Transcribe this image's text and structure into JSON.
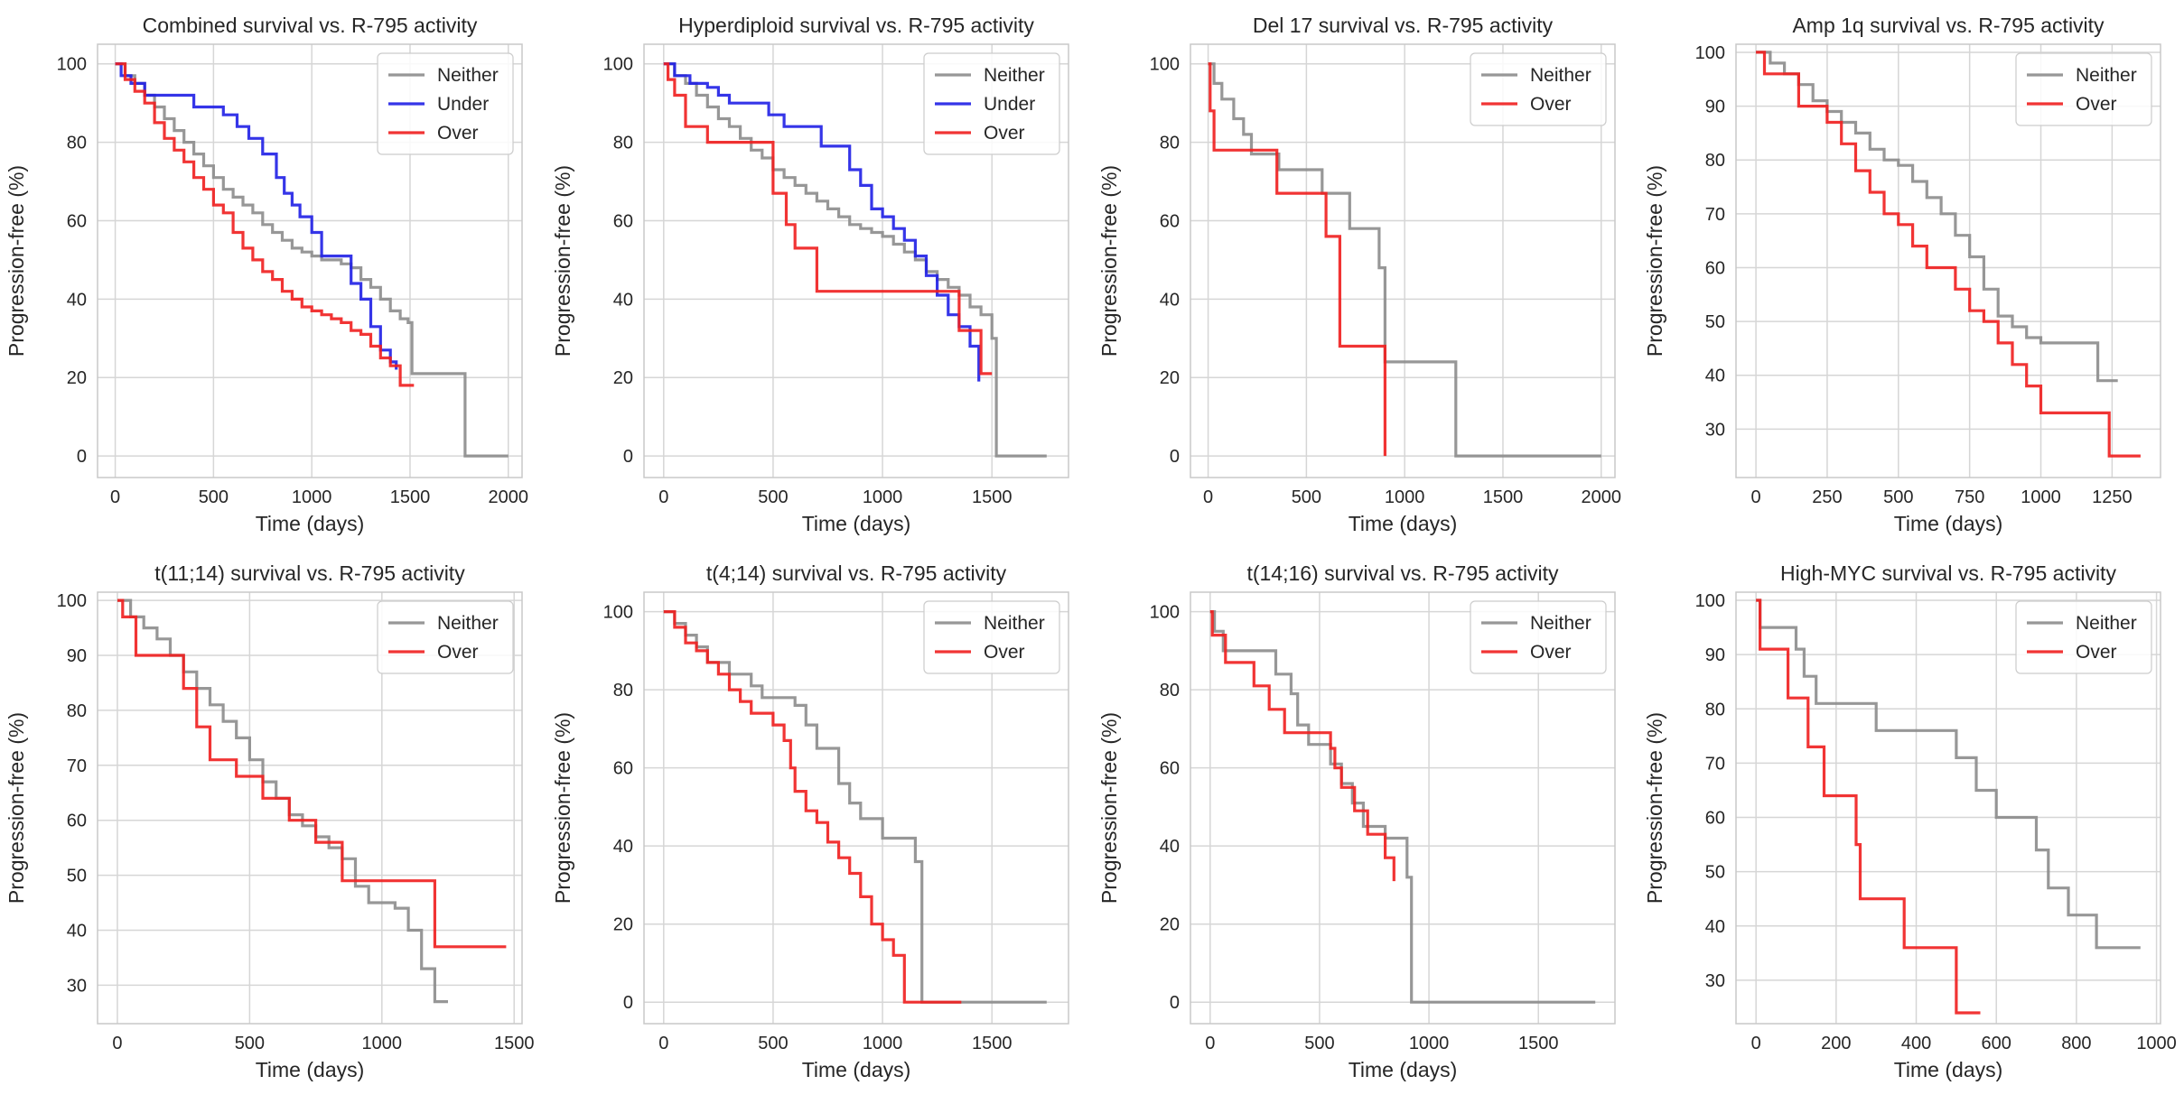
{
  "colors": {
    "Neither": "#8c8c8c",
    "Under": "#1f1fe6",
    "Over": "#f01e1e"
  },
  "chart_data": [
    {
      "type": "line",
      "title": "Combined survival vs. R-795 activity",
      "xlabel": "Time (days)",
      "ylabel": "Progression-free (%)",
      "xlim": [
        -90,
        2070
      ],
      "ylim": [
        -5.5,
        105
      ],
      "xticks": [
        0,
        500,
        1000,
        1500,
        2000
      ],
      "yticks": [
        0,
        20,
        40,
        60,
        80,
        100
      ],
      "grid": true,
      "legend": "top-right",
      "series": [
        {
          "name": "Neither",
          "x": [
            0,
            50,
            100,
            150,
            200,
            250,
            300,
            350,
            400,
            450,
            500,
            550,
            600,
            650,
            700,
            750,
            800,
            850,
            900,
            950,
            1000,
            1050,
            1100,
            1150,
            1200,
            1250,
            1300,
            1350,
            1400,
            1450,
            1490,
            1510,
            1760,
            1780,
            2000
          ],
          "y": [
            100,
            97,
            95,
            92,
            89,
            86,
            83,
            80,
            77,
            74,
            71,
            68,
            66,
            64,
            62,
            59,
            57,
            55,
            53,
            52,
            51,
            50,
            50,
            49,
            48,
            45,
            43,
            40,
            37,
            35,
            34,
            21,
            21,
            0,
            0
          ]
        },
        {
          "name": "Under",
          "x": [
            0,
            30,
            80,
            150,
            250,
            400,
            500,
            550,
            620,
            680,
            750,
            820,
            860,
            900,
            940,
            1000,
            1050,
            1100,
            1150,
            1200,
            1250,
            1300,
            1350,
            1400,
            1430
          ],
          "y": [
            100,
            97,
            95,
            92,
            92,
            89,
            89,
            87,
            84,
            81,
            77,
            71,
            67,
            64,
            61,
            57,
            51,
            51,
            51,
            44,
            40,
            33,
            27,
            24,
            22
          ]
        },
        {
          "name": "Over",
          "x": [
            0,
            50,
            100,
            150,
            200,
            250,
            300,
            350,
            400,
            450,
            500,
            550,
            600,
            650,
            700,
            750,
            800,
            850,
            900,
            950,
            1000,
            1050,
            1100,
            1150,
            1200,
            1250,
            1300,
            1350,
            1400,
            1450,
            1520
          ],
          "y": [
            100,
            96,
            93,
            90,
            85,
            81,
            78,
            75,
            71,
            68,
            64,
            62,
            57,
            53,
            50,
            47,
            45,
            42,
            40,
            38,
            37,
            36,
            35,
            34,
            32,
            31,
            28,
            25,
            23,
            18,
            18
          ]
        }
      ]
    },
    {
      "type": "line",
      "title": "Hyperdiploid survival vs. R-795 activity",
      "xlabel": "Time (days)",
      "ylabel": "Progression-free (%)",
      "xlim": [
        -90,
        1850
      ],
      "ylim": [
        -5.5,
        105
      ],
      "xticks": [
        0,
        500,
        1000,
        1500
      ],
      "yticks": [
        0,
        20,
        40,
        60,
        80,
        100
      ],
      "grid": true,
      "legend": "top-right",
      "series": [
        {
          "name": "Neither",
          "x": [
            0,
            50,
            100,
            150,
            200,
            250,
            300,
            350,
            400,
            450,
            500,
            550,
            600,
            650,
            700,
            750,
            800,
            850,
            900,
            950,
            1000,
            1050,
            1100,
            1150,
            1200,
            1250,
            1300,
            1350,
            1400,
            1450,
            1500,
            1520,
            1750
          ],
          "y": [
            100,
            97,
            95,
            92,
            89,
            86,
            84,
            81,
            78,
            76,
            73,
            71,
            69,
            67,
            65,
            63,
            61,
            59,
            58,
            57,
            56,
            54,
            52,
            50,
            47,
            45,
            43,
            41,
            38,
            36,
            30,
            0,
            0
          ]
        },
        {
          "name": "Under",
          "x": [
            0,
            50,
            120,
            200,
            250,
            300,
            400,
            480,
            550,
            650,
            720,
            800,
            850,
            900,
            950,
            1000,
            1050,
            1100,
            1150,
            1200,
            1250,
            1300,
            1350,
            1400,
            1440
          ],
          "y": [
            100,
            97,
            95,
            94,
            92,
            90,
            90,
            87,
            84,
            84,
            79,
            79,
            73,
            69,
            63,
            61,
            58,
            55,
            51,
            46,
            41,
            36,
            33,
            28,
            19
          ]
        },
        {
          "name": "Over",
          "x": [
            0,
            20,
            50,
            100,
            200,
            400,
            500,
            560,
            600,
            650,
            700,
            800,
            900,
            1000,
            1100,
            1200,
            1350,
            1450,
            1500
          ],
          "y": [
            100,
            96,
            92,
            84,
            80,
            80,
            67,
            59,
            53,
            53,
            42,
            42,
            42,
            42,
            42,
            42,
            32,
            21,
            21
          ]
        }
      ]
    },
    {
      "type": "line",
      "title": "Del 17 survival vs. R-795 activity",
      "xlabel": "Time (days)",
      "ylabel": "Progression-free (%)",
      "xlim": [
        -90,
        2070
      ],
      "ylim": [
        -5.5,
        105
      ],
      "xticks": [
        0,
        500,
        1000,
        1500,
        2000
      ],
      "yticks": [
        0,
        20,
        40,
        60,
        80,
        100
      ],
      "grid": true,
      "legend": "top-right",
      "series": [
        {
          "name": "Neither",
          "x": [
            0,
            30,
            70,
            130,
            180,
            220,
            360,
            580,
            720,
            870,
            900,
            1000,
            1100,
            1200,
            1260,
            1500,
            2000
          ],
          "y": [
            100,
            95,
            91,
            86,
            82,
            77,
            73,
            67,
            58,
            48,
            24,
            24,
            24,
            24,
            0,
            0,
            0
          ]
        },
        {
          "name": "Over",
          "x": [
            0,
            10,
            30,
            350,
            600,
            670,
            880,
            900
          ],
          "y": [
            100,
            88,
            78,
            67,
            56,
            28,
            28,
            0
          ]
        }
      ]
    },
    {
      "type": "line",
      "title": "Amp 1q survival vs. R-795 activity",
      "xlabel": "Time (days)",
      "ylabel": "Progression-free (%)",
      "xlim": [
        -70,
        1420
      ],
      "ylim": [
        21,
        101.5
      ],
      "xticks": [
        0,
        250,
        500,
        750,
        1000,
        1250
      ],
      "yticks": [
        30,
        40,
        50,
        60,
        70,
        80,
        90,
        100
      ],
      "grid": true,
      "legend": "top-right",
      "series": [
        {
          "name": "Neither",
          "x": [
            0,
            50,
            100,
            150,
            200,
            250,
            300,
            350,
            400,
            450,
            500,
            550,
            600,
            650,
            700,
            750,
            800,
            850,
            900,
            950,
            1000,
            1050,
            1100,
            1150,
            1200,
            1250,
            1270
          ],
          "y": [
            100,
            98,
            96,
            94,
            91,
            89,
            87,
            85,
            82,
            80,
            79,
            76,
            73,
            70,
            66,
            62,
            56,
            51,
            49,
            47,
            46,
            46,
            46,
            46,
            39,
            39,
            39
          ]
        },
        {
          "name": "Over",
          "x": [
            0,
            30,
            60,
            150,
            250,
            300,
            350,
            400,
            450,
            500,
            550,
            600,
            700,
            750,
            800,
            850,
            900,
            950,
            1000,
            1100,
            1200,
            1240,
            1350
          ],
          "y": [
            100,
            96,
            96,
            90,
            87,
            83,
            78,
            74,
            70,
            68,
            64,
            60,
            56,
            52,
            50,
            46,
            42,
            38,
            33,
            33,
            33,
            25,
            25
          ]
        }
      ]
    },
    {
      "type": "line",
      "title": "t(11;14) survival vs. R-795 activity",
      "xlabel": "Time (days)",
      "ylabel": "Progression-free (%)",
      "xlim": [
        -75,
        1530
      ],
      "ylim": [
        23,
        101.5
      ],
      "xticks": [
        0,
        500,
        1000,
        1500
      ],
      "yticks": [
        30,
        40,
        50,
        60,
        70,
        80,
        90,
        100
      ],
      "grid": true,
      "legend": "top-right",
      "series": [
        {
          "name": "Neither",
          "x": [
            0,
            50,
            100,
            150,
            200,
            250,
            300,
            350,
            400,
            450,
            500,
            550,
            600,
            650,
            700,
            750,
            800,
            850,
            900,
            950,
            1000,
            1050,
            1100,
            1150,
            1200,
            1250
          ],
          "y": [
            100,
            97,
            95,
            93,
            90,
            87,
            84,
            81,
            78,
            75,
            71,
            67,
            64,
            61,
            59,
            57,
            55,
            53,
            48,
            45,
            45,
            44,
            40,
            33,
            27,
            27
          ]
        },
        {
          "name": "Over",
          "x": [
            0,
            20,
            70,
            200,
            250,
            300,
            350,
            450,
            550,
            600,
            650,
            750,
            800,
            850,
            1000,
            1100,
            1200,
            1470
          ],
          "y": [
            100,
            97,
            90,
            90,
            84,
            77,
            71,
            68,
            64,
            64,
            60,
            56,
            56,
            49,
            49,
            49,
            37,
            37
          ]
        }
      ]
    },
    {
      "type": "line",
      "title": "t(4;14) survival vs. R-795 activity",
      "xlabel": "Time (days)",
      "ylabel": "Progression-free (%)",
      "xlim": [
        -90,
        1850
      ],
      "ylim": [
        -5.5,
        105
      ],
      "xticks": [
        0,
        500,
        1000,
        1500
      ],
      "yticks": [
        0,
        20,
        40,
        60,
        80,
        100
      ],
      "grid": true,
      "legend": "top-right",
      "series": [
        {
          "name": "Neither",
          "x": [
            0,
            50,
            100,
            150,
            200,
            300,
            400,
            450,
            550,
            600,
            650,
            700,
            800,
            850,
            900,
            1000,
            1100,
            1150,
            1180,
            1500,
            1750
          ],
          "y": [
            100,
            97,
            94,
            91,
            87,
            84,
            81,
            78,
            78,
            76,
            71,
            65,
            56,
            51,
            47,
            42,
            42,
            36,
            0,
            0,
            0
          ]
        },
        {
          "name": "Over",
          "x": [
            0,
            50,
            100,
            150,
            200,
            250,
            300,
            350,
            400,
            500,
            550,
            580,
            600,
            650,
            700,
            750,
            800,
            850,
            900,
            950,
            1000,
            1050,
            1100,
            1300,
            1360
          ],
          "y": [
            100,
            96,
            92,
            90,
            87,
            84,
            80,
            77,
            74,
            71,
            67,
            60,
            54,
            49,
            46,
            41,
            37,
            33,
            27,
            20,
            16,
            12,
            0,
            0,
            0
          ]
        }
      ]
    },
    {
      "type": "line",
      "title": "t(14;16) survival vs. R-795 activity",
      "xlabel": "Time (days)",
      "ylabel": "Progression-free (%)",
      "xlim": [
        -90,
        1850
      ],
      "ylim": [
        -5.5,
        105
      ],
      "xticks": [
        0,
        500,
        1000,
        1500
      ],
      "yticks": [
        0,
        20,
        40,
        60,
        80,
        100
      ],
      "grid": true,
      "legend": "top-right",
      "series": [
        {
          "name": "Neither",
          "x": [
            0,
            20,
            60,
            100,
            200,
            300,
            350,
            370,
            400,
            450,
            500,
            550,
            600,
            650,
            700,
            800,
            900,
            920,
            1000,
            1500,
            1760
          ],
          "y": [
            100,
            95,
            90,
            90,
            90,
            84,
            84,
            79,
            71,
            66,
            66,
            61,
            56,
            51,
            45,
            42,
            32,
            0,
            0,
            0,
            0
          ]
        },
        {
          "name": "Over",
          "x": [
            0,
            10,
            70,
            200,
            270,
            340,
            450,
            550,
            570,
            600,
            660,
            720,
            800,
            840
          ],
          "y": [
            100,
            94,
            87,
            81,
            75,
            69,
            69,
            65,
            60,
            55,
            49,
            43,
            37,
            31
          ]
        }
      ]
    },
    {
      "type": "line",
      "title": "High-MYC survival vs. R-795 activity",
      "xlabel": "Time (days)",
      "ylabel": "Progression-free (%)",
      "xlim": [
        -50,
        1010
      ],
      "ylim": [
        22,
        101.5
      ],
      "xticks": [
        0,
        200,
        400,
        600,
        800,
        1000
      ],
      "yticks": [
        30,
        40,
        50,
        60,
        70,
        80,
        90,
        100
      ],
      "grid": true,
      "legend": "top-right",
      "series": [
        {
          "name": "Neither",
          "x": [
            0,
            10,
            100,
            120,
            150,
            200,
            300,
            450,
            500,
            550,
            600,
            650,
            700,
            730,
            780,
            850,
            960
          ],
          "y": [
            100,
            95,
            91,
            86,
            81,
            81,
            76,
            76,
            71,
            65,
            60,
            60,
            54,
            47,
            42,
            36,
            36
          ]
        },
        {
          "name": "Over",
          "x": [
            0,
            10,
            80,
            130,
            170,
            250,
            260,
            300,
            370,
            450,
            500,
            560
          ],
          "y": [
            100,
            91,
            82,
            73,
            64,
            55,
            45,
            45,
            36,
            36,
            24,
            24
          ]
        }
      ]
    }
  ]
}
